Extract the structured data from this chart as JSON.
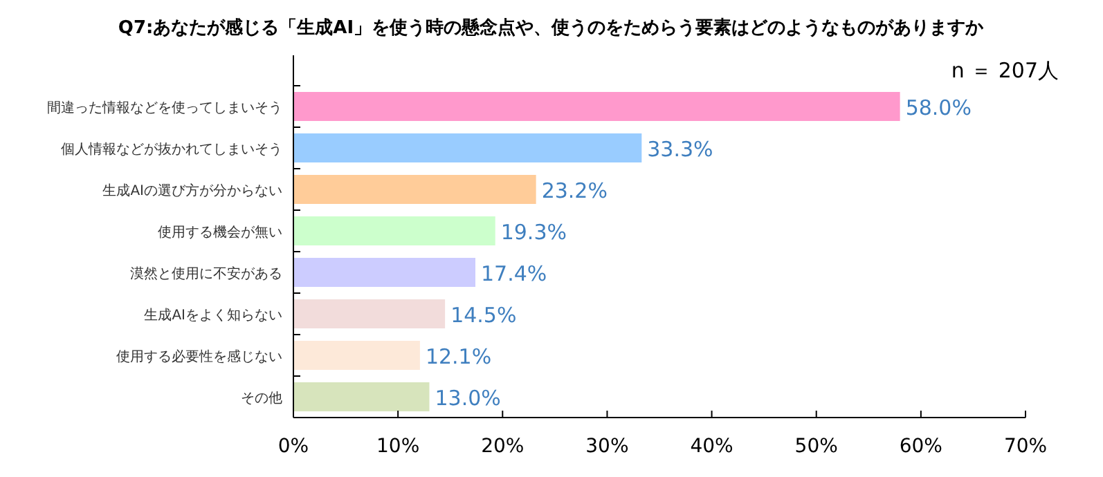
{
  "chart_data": {
    "type": "bar",
    "orientation": "horizontal",
    "title": "Q7:あなたが感じる「生成AI」を使う時の懸念点や、使うのをためらう要素はどのようなものがありますか",
    "subtitle": "n ＝ 207人",
    "categories": [
      "間違った情報などを使ってしまいそう",
      "個人情報などが抜かれてしまいそう",
      "生成AIの選び方が分からない",
      "使用する機会が無い",
      "漠然と使用に不安がある",
      "生成AIをよく知らない",
      "使用する必要性を感じない",
      "その他"
    ],
    "values": [
      58.0,
      33.3,
      23.2,
      19.3,
      17.4,
      14.5,
      12.1,
      13.0
    ],
    "colors": [
      "#ff99cc",
      "#99ccff",
      "#ffcc99",
      "#ccffcc",
      "#ccccff",
      "#f2dcdb",
      "#fde9d9",
      "#d7e4bc"
    ],
    "value_labels": [
      "58.0%",
      "33.3%",
      "23.2%",
      "19.3%",
      "17.4%",
      "14.5%",
      "12.1%",
      "13.0%"
    ],
    "xlim": [
      0,
      70
    ],
    "xticks": [
      {
        "value": 0,
        "label": "0%"
      },
      {
        "value": 10,
        "label": "10%"
      },
      {
        "value": 20,
        "label": "20%"
      },
      {
        "value": 30,
        "label": "30%"
      },
      {
        "value": 40,
        "label": "40%"
      },
      {
        "value": 50,
        "label": "50%"
      },
      {
        "value": 60,
        "label": "60%"
      },
      {
        "value": 70,
        "label": "70%"
      }
    ],
    "grid": false
  }
}
